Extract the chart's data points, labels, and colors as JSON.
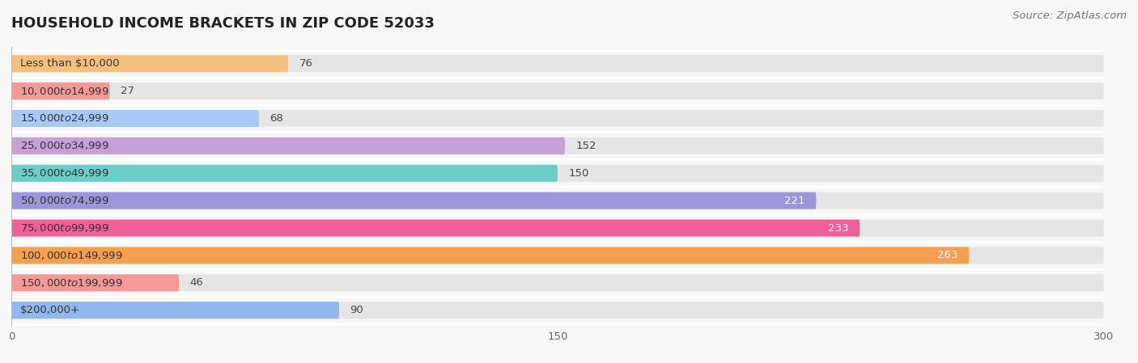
{
  "title": "HOUSEHOLD INCOME BRACKETS IN ZIP CODE 52033",
  "source": "Source: ZipAtlas.com",
  "categories": [
    "Less than $10,000",
    "$10,000 to $14,999",
    "$15,000 to $24,999",
    "$25,000 to $34,999",
    "$35,000 to $49,999",
    "$50,000 to $74,999",
    "$75,000 to $99,999",
    "$100,000 to $149,999",
    "$150,000 to $199,999",
    "$200,000+"
  ],
  "values": [
    76,
    27,
    68,
    152,
    150,
    221,
    233,
    263,
    46,
    90
  ],
  "colors": [
    "#F5BF7D",
    "#F49898",
    "#A8C8F5",
    "#C8A0D8",
    "#6CCCC8",
    "#9898D8",
    "#F06098",
    "#F5A050",
    "#F49898",
    "#90B8EC"
  ],
  "xlim": [
    0,
    300
  ],
  "xticks": [
    0,
    150,
    300
  ],
  "background_color": "#f7f7f7",
  "bar_bg_color": "#e5e5e5",
  "title_fontsize": 13,
  "label_fontsize": 9.5,
  "value_fontsize": 9.5,
  "source_fontsize": 9.5
}
